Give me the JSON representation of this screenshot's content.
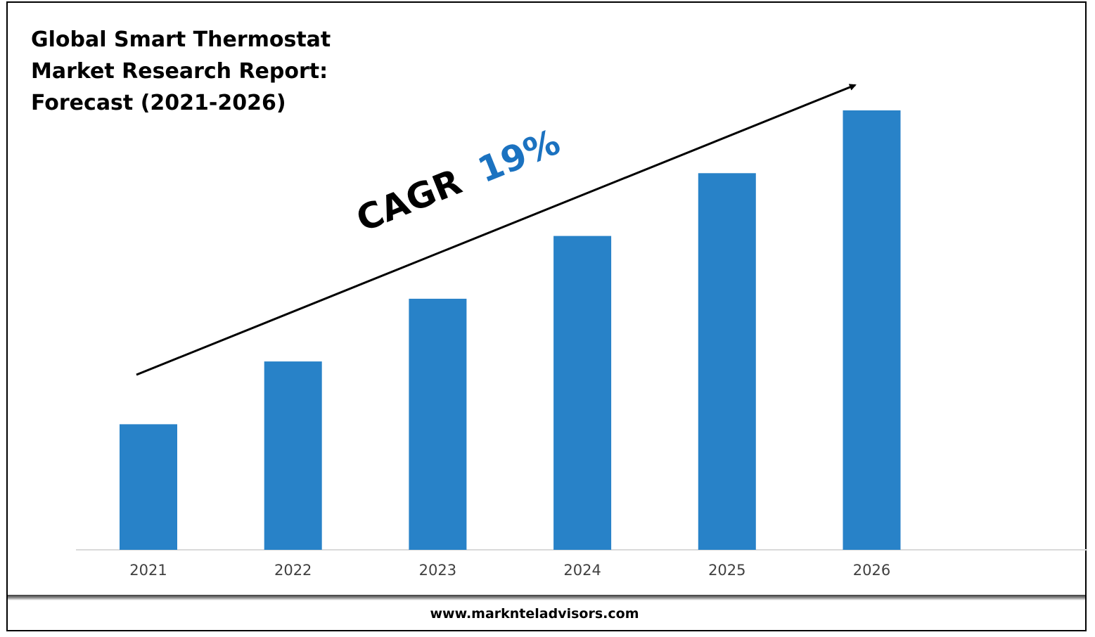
{
  "title_lines": [
    "Global Smart Thermostat",
    "Market Research Report:",
    "Forecast (2021-2026)"
  ],
  "footer": "www.marknteladvisors.com",
  "cagr": {
    "label": "CAGR",
    "value": "19%"
  },
  "colors": {
    "bar": "#2882c8",
    "cagr_value": "#1b72c0",
    "axis": "#d9d9d9",
    "text": "#000000",
    "tick": "#404040"
  },
  "chart_data": {
    "type": "bar",
    "categories": [
      "2021",
      "2022",
      "2023",
      "2024",
      "2025",
      "2026"
    ],
    "values": [
      1.0,
      1.5,
      2.0,
      2.5,
      3.0,
      3.5
    ],
    "grid": false,
    "legend": "none",
    "trend_arrow": true
  }
}
